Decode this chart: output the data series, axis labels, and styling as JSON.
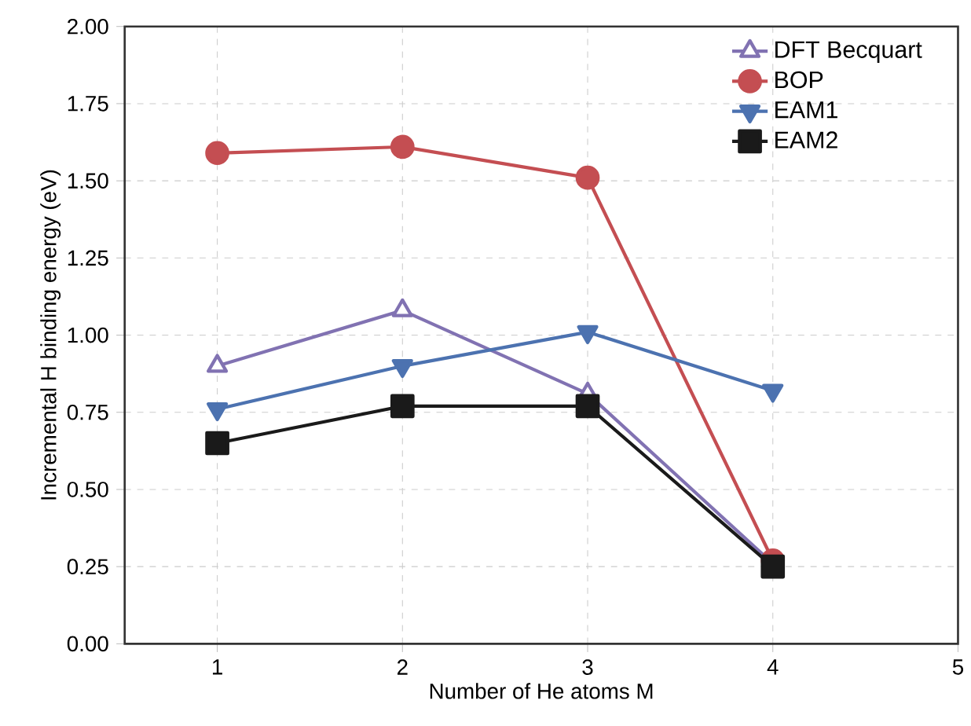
{
  "chart_data": {
    "type": "line",
    "xlabel": "Number of He atoms M",
    "ylabel": "Incremental H binding energy (eV)",
    "x": [
      1,
      2,
      3,
      4
    ],
    "series": [
      {
        "name": "DFT Becquart",
        "color": "#8172b2",
        "marker": "triangle",
        "values": [
          0.9,
          1.08,
          0.81,
          0.26
        ]
      },
      {
        "name": "BOP",
        "color": "#c44e52",
        "marker": "circle",
        "values": [
          1.59,
          1.61,
          1.51,
          0.27
        ]
      },
      {
        "name": "EAM1",
        "color": "#4c72b0",
        "marker": "triangle-down",
        "values": [
          0.76,
          0.9,
          1.01,
          0.82
        ]
      },
      {
        "name": "EAM2",
        "color": "#1a1a1a",
        "marker": "square",
        "values": [
          0.65,
          0.77,
          0.77,
          0.25
        ]
      }
    ],
    "xlim": [
      0.5,
      5
    ],
    "ylim": [
      0,
      2
    ],
    "xticks": [
      1,
      2,
      3,
      4,
      5
    ],
    "yticks": [
      {
        "value": 0,
        "label": "0.00"
      },
      {
        "value": 0.25,
        "label": "0.25"
      },
      {
        "value": 0.5,
        "label": "0.50"
      },
      {
        "value": 0.75,
        "label": "0.75"
      },
      {
        "value": 1,
        "label": "1.00"
      },
      {
        "value": 1.25,
        "label": "1.25"
      },
      {
        "value": 1.5,
        "label": "1.50"
      },
      {
        "value": 1.75,
        "label": "1.75"
      },
      {
        "value": 2,
        "label": "2.00"
      }
    ],
    "grid": true,
    "legend": "top right",
    "line_style": "solid"
  }
}
